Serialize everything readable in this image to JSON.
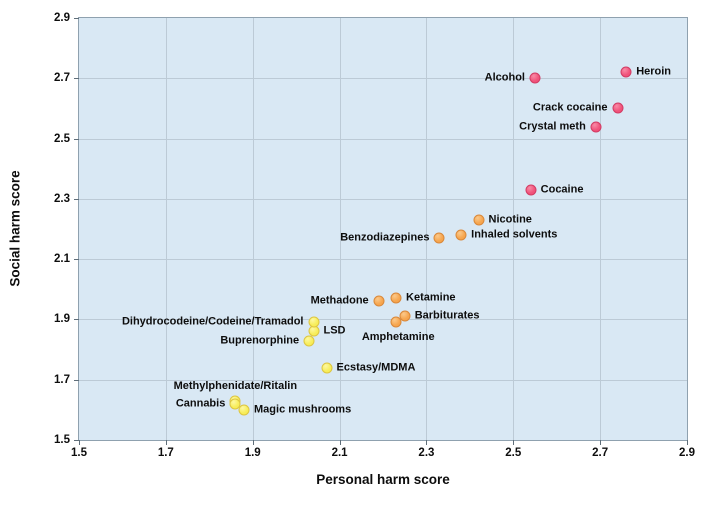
{
  "chart_data": {
    "type": "scatter",
    "title": "",
    "xlabel": "Personal harm score",
    "ylabel": "Social harm score",
    "xlim": [
      1.5,
      2.9
    ],
    "ylim": [
      1.5,
      2.9
    ],
    "xticks": [
      1.5,
      1.7,
      1.9,
      2.1,
      2.3,
      2.5,
      2.7,
      2.9
    ],
    "yticks": [
      1.5,
      1.7,
      1.9,
      2.1,
      2.3,
      2.5,
      2.7,
      2.9
    ],
    "tick_decimals": 1,
    "grid": true,
    "legend": false,
    "plot_bg": "#d9e8f4",
    "grid_color": "#bccad6",
    "axis_color": "#8fa1af",
    "tick_color": "#5f6e79",
    "text_color": "#0d0d0d",
    "groups": {
      "high": {
        "color": "#f0527a",
        "light": "#f88ba6",
        "border": "#d23c64"
      },
      "medium": {
        "color": "#f6a54e",
        "light": "#fbc98b",
        "border": "#d9883a"
      },
      "low": {
        "color": "#f7ed58",
        "light": "#fdf8a2",
        "border": "#ddc542"
      }
    },
    "points": [
      {
        "label": "Heroin",
        "x": 2.76,
        "y": 2.72,
        "group": "high",
        "label_side": "right"
      },
      {
        "label": "Alcohol",
        "x": 2.55,
        "y": 2.7,
        "group": "high",
        "label_side": "left"
      },
      {
        "label": "Crack cocaine",
        "x": 2.74,
        "y": 2.6,
        "group": "high",
        "label_side": "left"
      },
      {
        "label": "Crystal meth",
        "x": 2.69,
        "y": 2.54,
        "group": "high",
        "label_side": "left"
      },
      {
        "label": "Cocaine",
        "x": 2.54,
        "y": 2.33,
        "group": "high",
        "label_side": "right"
      },
      {
        "label": "Nicotine",
        "x": 2.42,
        "y": 2.23,
        "group": "medium",
        "label_side": "right"
      },
      {
        "label": "Inhaled solvents",
        "x": 2.38,
        "y": 2.18,
        "group": "medium",
        "label_side": "right"
      },
      {
        "label": "Benzodiazepines",
        "x": 2.33,
        "y": 2.17,
        "group": "medium",
        "label_side": "left"
      },
      {
        "label": "Ketamine",
        "x": 2.23,
        "y": 1.97,
        "group": "medium",
        "label_side": "right"
      },
      {
        "label": "Methadone",
        "x": 2.19,
        "y": 1.96,
        "group": "medium",
        "label_side": "left"
      },
      {
        "label": "Amphetamine",
        "x": 2.23,
        "y": 1.89,
        "group": "medium",
        "label_side": "below"
      },
      {
        "label": "Barbiturates",
        "x": 2.25,
        "y": 1.91,
        "group": "medium",
        "label_side": "right"
      },
      {
        "label": "Ecstasy/MDMA",
        "x": 2.07,
        "y": 1.74,
        "group": "low",
        "label_side": "right"
      },
      {
        "label": "Buprenorphine",
        "x": 2.03,
        "y": 1.83,
        "group": "low",
        "label_side": "left"
      },
      {
        "label": "LSD",
        "x": 2.04,
        "y": 1.86,
        "group": "low",
        "label_side": "right"
      },
      {
        "label": "Dihydrocodeine/Codeine/Tramadol",
        "x": 2.04,
        "y": 1.89,
        "group": "low",
        "label_side": "left"
      },
      {
        "label": "Methylphenidate/Ritalin",
        "x": 1.86,
        "y": 1.63,
        "group": "low",
        "label_side": "above"
      },
      {
        "label": "Cannabis",
        "x": 1.86,
        "y": 1.62,
        "group": "low",
        "label_side": "left"
      },
      {
        "label": "Magic mushrooms",
        "x": 1.88,
        "y": 1.6,
        "group": "low",
        "label_side": "right"
      }
    ]
  }
}
